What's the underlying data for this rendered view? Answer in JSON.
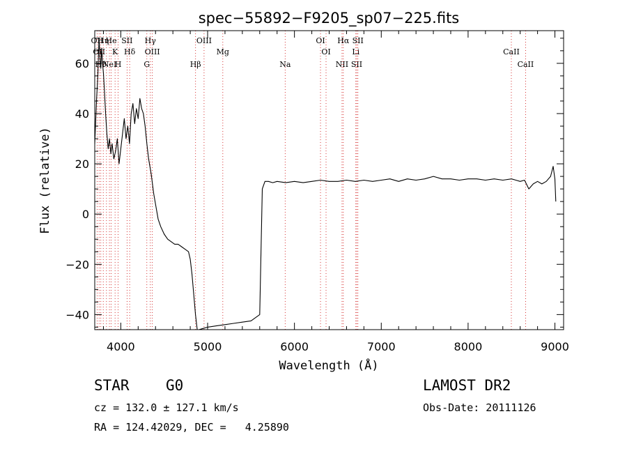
{
  "chart_data": {
    "type": "line",
    "title": "spec−55892−F9205_sp07−225.fits",
    "xlabel": "Wavelength (Å)",
    "ylabel": "Flux (relative)",
    "xlim": [
      3700,
      9100
    ],
    "ylim": [
      -46,
      73
    ],
    "xticks": [
      4000,
      5000,
      6000,
      7000,
      8000,
      9000
    ],
    "yticks": [
      -40,
      -20,
      0,
      20,
      40,
      60
    ],
    "xtick_labels": [
      "4000",
      "5000",
      "6000",
      "7000",
      "8000",
      "9000"
    ],
    "ytick_labels": [
      "−40",
      "−20",
      "0",
      "20",
      "40",
      "60"
    ],
    "grid": false,
    "series": [
      {
        "x": [
          3700,
          3720,
          3735,
          3750,
          3760,
          3770,
          3780,
          3790,
          3800,
          3810,
          3825,
          3840,
          3855,
          3870,
          3885,
          3900,
          3920,
          3940,
          3960,
          3980,
          4000,
          4020,
          4040,
          4060,
          4080,
          4100,
          4120,
          4140,
          4160,
          4180,
          4200,
          4220,
          4240,
          4260,
          4280,
          4300,
          4320,
          4350,
          4380,
          4400,
          4430,
          4460,
          4500,
          4540,
          4580,
          4620,
          4660,
          4700,
          4740,
          4780,
          4800,
          4820,
          4840,
          4860,
          4880,
          4900,
          4950,
          5000,
          5100,
          5200,
          5300,
          5400,
          5500,
          5600,
          5630,
          5660,
          5700,
          5750,
          5800,
          5900,
          6000,
          6100,
          6200,
          6300,
          6400,
          6500,
          6600,
          6700,
          6800,
          6900,
          7000,
          7100,
          7200,
          7300,
          7400,
          7500,
          7600,
          7700,
          7800,
          7900,
          8000,
          8100,
          8200,
          8300,
          8400,
          8500,
          8550,
          8600,
          8650,
          8700,
          8750,
          8800,
          8850,
          8900,
          8950,
          8980,
          9000,
          9010
        ],
        "y": [
          28,
          45,
          55,
          70,
          62,
          58,
          66,
          60,
          56,
          50,
          40,
          32,
          26,
          30,
          24,
          28,
          22,
          25,
          30,
          20,
          26,
          32,
          38,
          30,
          35,
          28,
          40,
          44,
          36,
          42,
          38,
          46,
          42,
          40,
          35,
          28,
          22,
          16,
          8,
          4,
          -2,
          -5,
          -8,
          -10,
          -11,
          -12,
          -12,
          -13,
          -14,
          -15,
          -18,
          -24,
          -32,
          -40,
          -46,
          -46,
          -45.5,
          -45,
          -44.5,
          -44,
          -43.5,
          -43,
          -42.5,
          -40,
          10,
          13,
          13,
          12.5,
          13,
          12.5,
          13,
          12.5,
          13,
          13.5,
          13,
          13,
          13.5,
          13,
          13.5,
          13,
          13.5,
          14,
          13,
          14,
          13.5,
          14,
          15,
          14,
          14,
          13.5,
          14,
          14,
          13.5,
          14,
          13.5,
          14,
          13.5,
          13,
          13.5,
          10,
          12,
          13,
          12,
          13,
          15,
          19,
          14,
          5
        ]
      }
    ],
    "lines": [
      {
        "x": 3727,
        "labels": [
          "OII"
        ]
      },
      {
        "x": 3750,
        "labels": [
          "OII"
        ]
      },
      {
        "x": 3770,
        "labels": [
          "Hθ"
        ]
      },
      {
        "x": 3798,
        "labels": [
          "Hη"
        ]
      },
      {
        "x": 3835,
        "labels": []
      },
      {
        "x": 3869,
        "labels": [
          "NeI"
        ]
      },
      {
        "x": 3889,
        "labels": [
          "He"
        ]
      },
      {
        "x": 3934,
        "labels": [
          "K"
        ]
      },
      {
        "x": 3969,
        "labels": [
          "H"
        ]
      },
      {
        "x": 4072,
        "labels": [
          "SII"
        ]
      },
      {
        "x": 4102,
        "labels": [
          "Hδ"
        ]
      },
      {
        "x": 4300,
        "labels": [
          "G"
        ]
      },
      {
        "x": 4340,
        "labels": [
          "Hγ"
        ]
      },
      {
        "x": 4363,
        "labels": [
          "OIII"
        ]
      },
      {
        "x": 4861,
        "labels": [
          "Hβ"
        ]
      },
      {
        "x": 4959,
        "labels": [
          "OIII"
        ]
      },
      {
        "x": 5175,
        "labels": [
          "Mg"
        ]
      },
      {
        "x": 5893,
        "labels": [
          "Na"
        ]
      },
      {
        "x": 6300,
        "labels": [
          "OI"
        ]
      },
      {
        "x": 6364,
        "labels": [
          "OI"
        ]
      },
      {
        "x": 6548,
        "labels": [
          "NII"
        ]
      },
      {
        "x": 6563,
        "labels": [
          "Hα"
        ]
      },
      {
        "x": 6707,
        "labels": [
          "Li"
        ]
      },
      {
        "x": 6717,
        "labels": [
          "SII"
        ]
      },
      {
        "x": 6731,
        "labels": [
          "SII"
        ]
      },
      {
        "x": 8498,
        "labels": [
          "CaII"
        ]
      },
      {
        "x": 8662,
        "labels": [
          "CaII"
        ]
      }
    ]
  },
  "footer": {
    "object_class": "STAR",
    "subclass": "G0",
    "survey": "LAMOST DR2",
    "redshift": "cz = 132.0 ± 127.1 km/s",
    "obs_date": "Obs-Date: 20111126",
    "coords": "RA = 124.42029, DEC =   4.25890"
  }
}
